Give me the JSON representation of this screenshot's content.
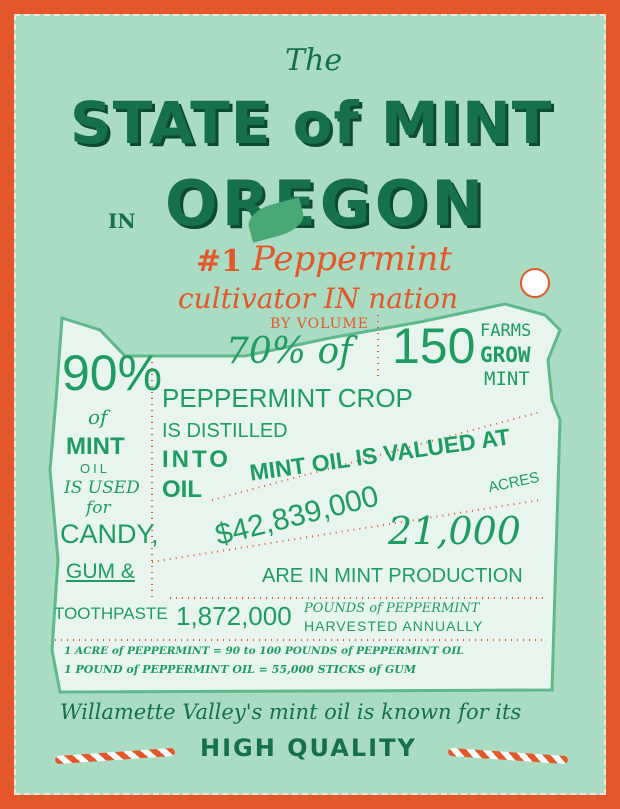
{
  "title": {
    "the": "The",
    "line1": "STATE of MINT",
    "in": "IN",
    "line2": "OREGON"
  },
  "headline": {
    "rank": "#1",
    "word1": "Peppermint",
    "word2": "cultivator IN nation",
    "qualifier": "BY VOLUME"
  },
  "facts": {
    "candy_pct": "90%",
    "candy_of": "of",
    "candy_mint": "MINT",
    "candy_oil": "OIL",
    "candy_used": "IS USED",
    "candy_for": "for",
    "candy_candy": "CANDY,",
    "candy_gum": "GUM &",
    "candy_tooth": "TOOTHPASTE",
    "distilled_pct": "70% of",
    "distilled_l1": "PEPPERMINT CROP",
    "distilled_l2": "IS DISTILLED",
    "distilled_l3": "INTO",
    "distilled_l4": "OIL",
    "farms_num": "150",
    "farms_l1": "FARMS",
    "farms_l2": "GROW",
    "farms_l3": "MINT",
    "value_l1": "MINT OIL IS VALUED AT",
    "value_l2": "$42,839,000",
    "acres_num": "21,000",
    "acres_unit": "ACRES",
    "acres_l2": "ARE IN MINT PRODUCTION",
    "pounds_num": "1,872,000",
    "pounds_l1": "POUNDS of PEPPERMINT",
    "pounds_l2": "HARVESTED ANNUALLY",
    "conv1": "1 ACRE of PEPPERMINT = 90 to 100 POUNDS of PEPPERMINT OIL",
    "conv2": "1 POUND of PEPPERMINT OIL = 55,000 STICKS of GUM"
  },
  "footer": {
    "line1": "Willamette Valley's mint oil is known for its",
    "line2": "HIGH QUALITY"
  },
  "colors": {
    "border": "#e4572b",
    "background": "#a9dcc3",
    "map": "#e8f5ee",
    "green": "#1e9c62",
    "dark_green": "#16704a",
    "accent": "#e2582b"
  }
}
